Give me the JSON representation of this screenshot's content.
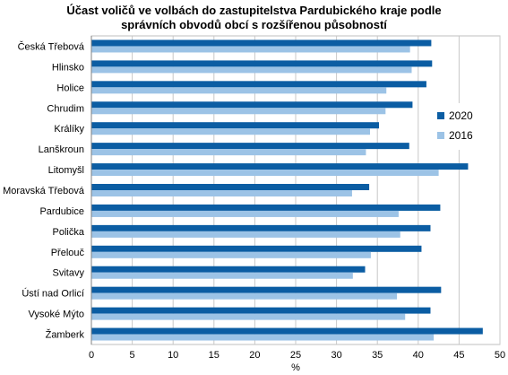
{
  "chart_data": {
    "type": "bar",
    "orientation": "horizontal",
    "title": [
      "Účast voličů ve volbách do zastupitelstva Pardubického kraje podle",
      "správních obvodů obcí s rozšířenou působností"
    ],
    "xlabel": "%",
    "ylabel": "",
    "xlim": [
      0,
      50
    ],
    "xticks": [
      0,
      5,
      10,
      15,
      20,
      25,
      30,
      35,
      40,
      45,
      50
    ],
    "grid": "vertical",
    "legend_position": "right",
    "categories": [
      "Česká Třebová",
      "Hlinsko",
      "Holice",
      "Chrudim",
      "Králíky",
      "Lanškroun",
      "Litomyšl",
      "Moravská Třebová",
      "Pardubice",
      "Polička",
      "Přelouč",
      "Svitavy",
      "Ústí nad Orlicí",
      "Vysoké Mýto",
      "Žamberk"
    ],
    "series": [
      {
        "name": "2020",
        "color": "#0b5da3",
        "values": [
          41.6,
          41.7,
          41.0,
          39.3,
          35.2,
          38.9,
          46.1,
          34.0,
          42.7,
          41.5,
          40.4,
          33.5,
          42.8,
          41.5,
          47.9
        ]
      },
      {
        "name": "2016",
        "color": "#9cc3e6",
        "values": [
          39.0,
          39.2,
          36.1,
          36.0,
          34.1,
          33.6,
          42.5,
          31.9,
          37.6,
          37.8,
          34.2,
          32.0,
          37.4,
          38.4,
          41.9
        ]
      }
    ]
  }
}
